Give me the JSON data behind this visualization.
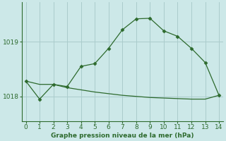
{
  "line1_x": [
    0,
    1,
    2,
    3,
    4,
    5,
    6,
    7,
    8,
    9,
    10,
    11,
    12,
    13,
    14
  ],
  "line1_y": [
    1018.28,
    1017.95,
    1018.22,
    1018.18,
    1018.55,
    1018.6,
    1018.88,
    1019.22,
    1019.42,
    1019.43,
    1019.2,
    1019.1,
    1018.88,
    1018.62,
    1018.02
  ],
  "line2_x": [
    0,
    1,
    2,
    3,
    4,
    5,
    6,
    7,
    8,
    9,
    10,
    11,
    12,
    13,
    14
  ],
  "line2_y": [
    1018.28,
    1018.22,
    1018.22,
    1018.16,
    1018.12,
    1018.08,
    1018.05,
    1018.02,
    1018.0,
    1017.98,
    1017.97,
    1017.96,
    1017.95,
    1017.95,
    1018.02
  ],
  "line_color": "#2d6a2d",
  "bg_color": "#cce8e8",
  "grid_color": "#aacccc",
  "xlabel": "Graphe pression niveau de la mer (hPa)",
  "xticks": [
    0,
    1,
    2,
    3,
    4,
    5,
    6,
    7,
    8,
    9,
    10,
    11,
    12,
    13,
    14
  ],
  "yticks": [
    1018,
    1019
  ],
  "xlim": [
    -0.3,
    14.3
  ],
  "ylim": [
    1017.55,
    1019.72
  ]
}
